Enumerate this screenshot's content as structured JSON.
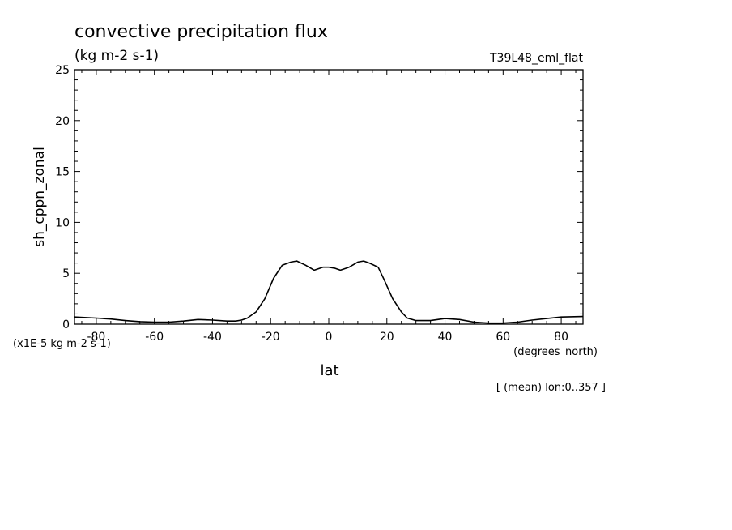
{
  "chart_data": {
    "type": "line",
    "title": "convective precipitation flux",
    "units_label": "(kg m-2 s-1)",
    "run_label": "T39L48_eml_flat",
    "ylabel": "sh_cppn_zonal",
    "xlabel": "lat",
    "x_units": "(degrees_north)",
    "y_scale_note": "(x1E-5 kg m-2 s-1)",
    "footnote": "[ (mean) lon:0..357 ]",
    "xlim": [
      -87.5,
      87.5
    ],
    "ylim": [
      0,
      25
    ],
    "x_ticks": [
      -80,
      -60,
      -40,
      -20,
      0,
      20,
      40,
      60,
      80
    ],
    "x_tick_labels": [
      "-80",
      "-60",
      "-40",
      "-20",
      "0",
      "20",
      "40",
      "60",
      "80"
    ],
    "y_ticks": [
      0,
      5,
      10,
      15,
      20,
      25
    ],
    "y_tick_labels": [
      "0",
      "5",
      "10",
      "15",
      "20",
      "25"
    ],
    "series": [
      {
        "x": [
          -87.5,
          -80,
          -75,
          -70,
          -65,
          -60,
          -55,
          -50,
          -45,
          -40,
          -35,
          -32,
          -30,
          -28,
          -25,
          -22,
          -19,
          -16,
          -13,
          -11,
          -8,
          -5,
          -2,
          0,
          2,
          4,
          7,
          10,
          12,
          14,
          17,
          19,
          22,
          25,
          27,
          30,
          35,
          40,
          45,
          50,
          55,
          60,
          65,
          70,
          75,
          80,
          87.5
        ],
        "y": [
          0.7,
          0.6,
          0.5,
          0.35,
          0.25,
          0.2,
          0.2,
          0.3,
          0.45,
          0.4,
          0.3,
          0.3,
          0.4,
          0.6,
          1.2,
          2.5,
          4.5,
          5.8,
          6.1,
          6.2,
          5.8,
          5.3,
          5.6,
          5.6,
          5.5,
          5.3,
          5.6,
          6.1,
          6.2,
          6.0,
          5.6,
          4.4,
          2.5,
          1.2,
          0.6,
          0.35,
          0.35,
          0.55,
          0.45,
          0.2,
          0.1,
          0.1,
          0.2,
          0.4,
          0.55,
          0.7,
          0.75
        ]
      }
    ],
    "grid": false,
    "line_color": "#000000"
  }
}
